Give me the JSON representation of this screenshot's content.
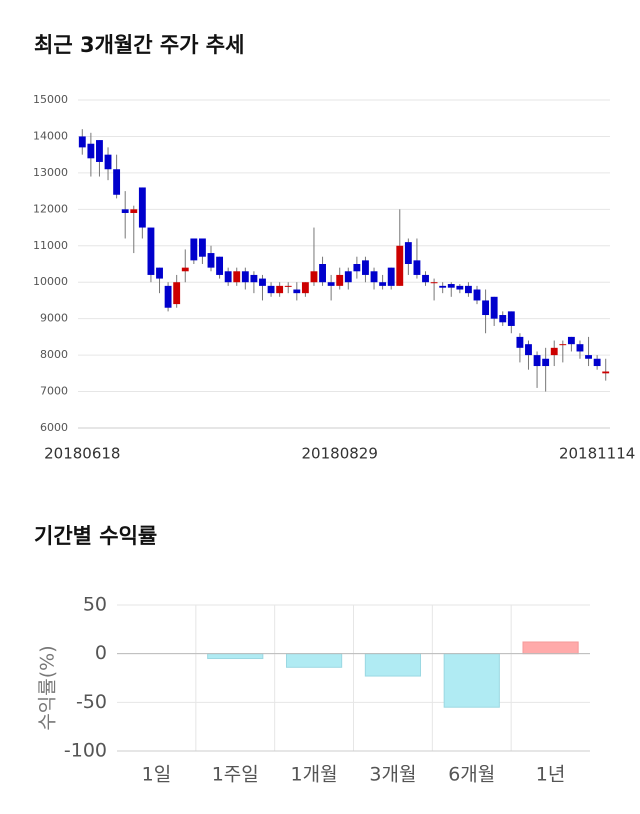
{
  "chart_data": [
    {
      "type": "candlestick",
      "title": "최근 3개월간 주가 추세",
      "categories": [
        "20180618",
        null,
        null,
        null,
        null,
        null,
        null,
        null,
        null,
        null,
        null,
        null,
        null,
        null,
        null,
        null,
        null,
        null,
        null,
        null,
        null,
        null,
        null,
        null,
        null,
        null,
        null,
        null,
        null,
        null,
        "20180829",
        null,
        null,
        null,
        null,
        null,
        null,
        null,
        null,
        null,
        null,
        null,
        null,
        null,
        null,
        null,
        null,
        null,
        null,
        null,
        null,
        null,
        null,
        null,
        null,
        null,
        null,
        null,
        null,
        null,
        "20181114",
        null
      ],
      "open": [
        14000,
        13800,
        13900,
        13500,
        13100,
        12000,
        11900,
        12600,
        11500,
        10400,
        9900,
        9400,
        10300,
        11200,
        11200,
        10800,
        10700,
        10300,
        10000,
        10300,
        10200,
        10100,
        9900,
        9700,
        9900,
        9800,
        9700,
        10000,
        10500,
        10000,
        9900,
        10300,
        10500,
        10600,
        10300,
        10000,
        10400,
        9900,
        11100,
        10600,
        10200,
        10000,
        9900,
        9950,
        9900,
        9900,
        9800,
        9500,
        9600,
        9100,
        9200,
        8500,
        8300,
        8000,
        7900,
        8000,
        8300,
        8500,
        8300,
        8000,
        7900,
        7500
      ],
      "high": [
        14200,
        14100,
        13900,
        13700,
        13500,
        12500,
        12100,
        12600,
        11500,
        10400,
        10000,
        10200,
        10900,
        11200,
        11200,
        11000,
        10700,
        10400,
        10400,
        10400,
        10300,
        10200,
        10000,
        10000,
        10000,
        10000,
        10000,
        11500,
        10700,
        10200,
        10400,
        10400,
        10700,
        10700,
        10400,
        10200,
        10400,
        12000,
        11200,
        11200,
        10300,
        10100,
        10000,
        10000,
        9950,
        10000,
        9900,
        9800,
        9600,
        9200,
        9200,
        8600,
        8400,
        8100,
        8200,
        8400,
        8400,
        8500,
        8400,
        8500,
        8000,
        7900
      ],
      "low": [
        13500,
        12900,
        12900,
        12800,
        12300,
        11200,
        10800,
        11200,
        10000,
        9700,
        9200,
        9300,
        10000,
        10500,
        10500,
        10300,
        10100,
        9900,
        9900,
        9800,
        9700,
        9500,
        9600,
        9600,
        9700,
        9500,
        9600,
        9900,
        9900,
        9500,
        9800,
        9800,
        10100,
        10000,
        9800,
        9800,
        9800,
        9900,
        10200,
        10100,
        9900,
        9500,
        9700,
        9600,
        9700,
        9600,
        9400,
        8600,
        8800,
        8800,
        8600,
        7800,
        7600,
        7100,
        7000,
        7700,
        7800,
        8100,
        7900,
        7700,
        7600,
        7300
      ],
      "close": [
        13700,
        13400,
        13300,
        13100,
        12400,
        11900,
        12000,
        11500,
        10200,
        10100,
        9300,
        10000,
        10400,
        10600,
        10700,
        10400,
        10200,
        10000,
        10300,
        10000,
        10000,
        9900,
        9700,
        9900,
        9900,
        9700,
        10000,
        10300,
        10000,
        9900,
        10200,
        10000,
        10300,
        10200,
        10000,
        9900,
        9900,
        11000,
        10500,
        10200,
        10000,
        10000,
        9850,
        9850,
        9800,
        9700,
        9500,
        9100,
        9000,
        8900,
        8800,
        8200,
        8000,
        7700,
        7700,
        8200,
        8300,
        8300,
        8100,
        7900,
        7700,
        7550
      ],
      "up_color": "#cc0000",
      "down_color": "#0000cc",
      "ylim": [
        6000,
        15000
      ],
      "yticks": [
        6000,
        7000,
        8000,
        9000,
        10000,
        11000,
        12000,
        13000,
        14000,
        15000
      ],
      "grid": true
    },
    {
      "type": "bar",
      "title": "기간별 수익률",
      "ylabel": "수익률(%)",
      "categories": [
        "1일",
        "1주일",
        "1개월",
        "3개월",
        "6개월",
        "1년"
      ],
      "values": [
        0,
        -5,
        -14,
        -23,
        -55,
        12
      ],
      "colors": [
        "#b0ebf3",
        "#b0ebf3",
        "#b0ebf3",
        "#b0ebf3",
        "#b0ebf3",
        "#ffaaaa"
      ],
      "ylim": [
        -100,
        50
      ],
      "yticks": [
        -100,
        -50,
        0,
        50
      ],
      "grid": true
    }
  ]
}
